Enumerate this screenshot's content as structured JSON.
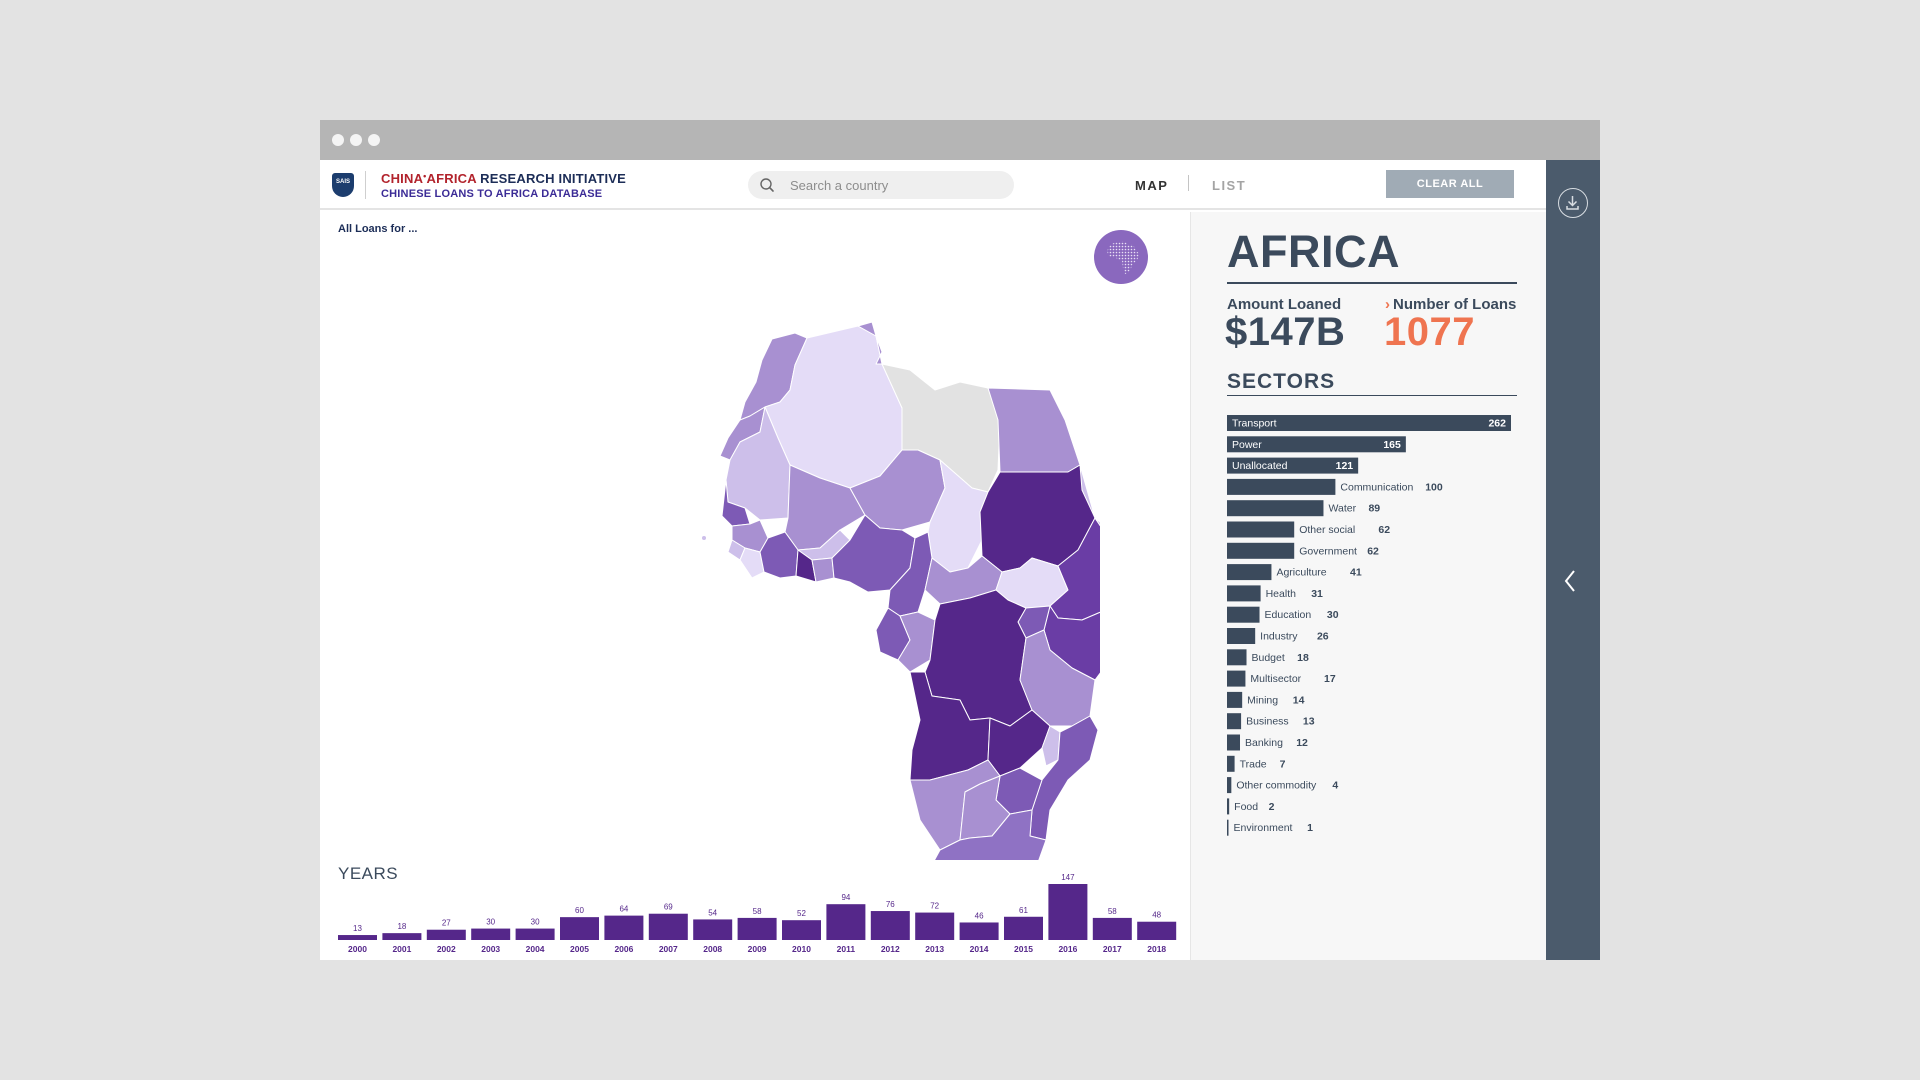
{
  "header": {
    "logo_text": "SAIS",
    "brand_red": "CHINA",
    "brand_star": "•",
    "brand_red2": "AFRICA",
    "brand_navy": " RESEARCH INITIATIVE",
    "subtitle": "CHINESE LOANS TO AFRICA DATABASE",
    "search_placeholder": "Search a country",
    "nav_map": "MAP",
    "nav_list": "LIST",
    "clear_all": "CLEAR ALL"
  },
  "map": {
    "filter_label": "All Loans for ...",
    "colors": {
      "level1": "#e4dcf7",
      "level2": "#cdbfea",
      "level3": "#a890d1",
      "level4": "#7d5ab5",
      "level5": "#55278a",
      "none": "#e2e2e2"
    }
  },
  "summary": {
    "region": "AFRICA",
    "amount_label": "Amount Loaned",
    "amount_value": "$147B",
    "count_label": "Number of Loans",
    "count_value": "1077",
    "sectors_title": "SECTORS"
  },
  "years_title": "YEARS",
  "chart_data": [
    {
      "type": "bar",
      "title": "YEARS",
      "categories": [
        "2000",
        "2001",
        "2002",
        "2003",
        "2004",
        "2005",
        "2006",
        "2007",
        "2008",
        "2009",
        "2010",
        "2011",
        "2012",
        "2013",
        "2014",
        "2015",
        "2016",
        "2017",
        "2018"
      ],
      "values": [
        13,
        18,
        27,
        30,
        30,
        60,
        64,
        69,
        54,
        58,
        52,
        94,
        76,
        72,
        46,
        61,
        147,
        58,
        48
      ],
      "color": "#55278a"
    },
    {
      "type": "bar",
      "orientation": "horizontal",
      "title": "SECTORS",
      "categories": [
        "Transport",
        "Power",
        "Unallocated",
        "Communication",
        "Water",
        "Other social",
        "Government",
        "Agriculture",
        "Health",
        "Education",
        "Industry",
        "Budget",
        "Multisector",
        "Mining",
        "Business",
        "Banking",
        "Trade",
        "Other commodity",
        "Food",
        "Environment"
      ],
      "values": [
        262,
        165,
        121,
        100,
        89,
        62,
        62,
        41,
        31,
        30,
        26,
        18,
        17,
        14,
        13,
        12,
        7,
        4,
        2,
        1
      ],
      "color": "#3b4a5c"
    }
  ]
}
